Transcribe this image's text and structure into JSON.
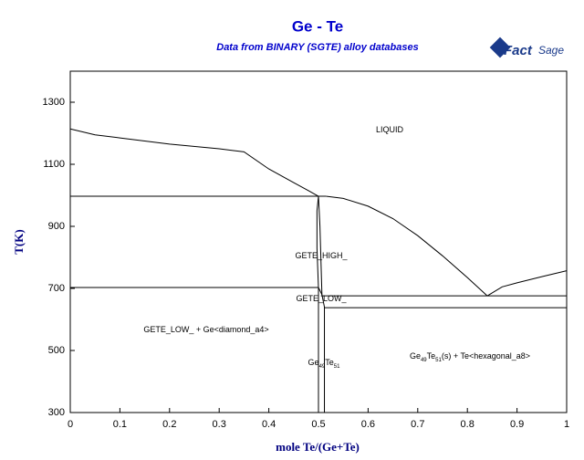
{
  "chart_data": {
    "type": "line",
    "title": "Ge - Te",
    "subtitle": "Data from BINARY (SGTE) alloy databases",
    "logo": [
      "Fact",
      "Sage"
    ],
    "x_label": "mole Te/(Ge+Te)",
    "y_label": "T(K)",
    "xlim": [
      0,
      1
    ],
    "ylim": [
      300,
      1400
    ],
    "xticks": [
      0,
      0.1,
      0.2,
      0.3,
      0.4,
      0.5,
      0.6,
      0.7,
      0.8,
      0.9,
      1
    ],
    "yticks": [
      300,
      500,
      700,
      900,
      1100,
      1300
    ],
    "series": [
      {
        "color": "#000000",
        "x": [
          0,
          0.05,
          0.1,
          0.2,
          0.3,
          0.35,
          0.4,
          0.45,
          0.48,
          0.5
        ],
        "values": [
          1214,
          1195,
          1185,
          1165,
          1150,
          1140,
          1085,
          1041,
          1015,
          997
        ]
      },
      {
        "color": "#000000",
        "x": [
          0,
          0.515
        ],
        "values": [
          997,
          997
        ]
      },
      {
        "color": "#000000",
        "x": [
          0.515,
          0.55,
          0.6,
          0.65,
          0.7,
          0.75,
          0.8,
          0.84
        ],
        "values": [
          997,
          990,
          965,
          925,
          870,
          805,
          735,
          676
        ]
      },
      {
        "color": "#000000",
        "x": [
          0.84,
          0.87,
          0.9,
          0.95,
          1
        ],
        "values": [
          676,
          705,
          718,
          738,
          757
        ]
      },
      {
        "color": "#000000",
        "x": [
          0.505,
          1
        ],
        "values": [
          676,
          676
        ]
      },
      {
        "color": "#000000",
        "x": [
          0.512,
          1
        ],
        "values": [
          638,
          638
        ]
      },
      {
        "color": "#000000",
        "x": [
          0,
          0.5
        ],
        "values": [
          703,
          703
        ]
      },
      {
        "color": "#000000",
        "x": [
          0.5,
          0.5,
          0.497,
          0.497,
          0.5
        ],
        "values": [
          300,
          700,
          830,
          950,
          997
        ]
      },
      {
        "color": "#000000",
        "x": [
          0.512,
          0.512,
          0.507,
          0.503,
          0.5
        ],
        "values": [
          300,
          640,
          680,
          900,
          997
        ]
      },
      {
        "color": "#000000",
        "x": [
          0.5,
          0.507
        ],
        "values": [
          703,
          680
        ]
      }
    ],
    "annotations": [
      {
        "parts": [
          "LIQUID"
        ]
      },
      {
        "parts": [
          "GETE_HIGH_"
        ]
      },
      {
        "parts": [
          "GETE_LOW_"
        ]
      },
      {
        "parts": [
          "GETE_LOW_ + Ge<diamond_a4>"
        ]
      },
      {
        "parts": [
          "Ge",
          "49",
          "Te",
          "51"
        ]
      },
      {
        "parts": [
          "Ge",
          "49",
          "Te",
          "51",
          "(s) + Te<hexagonal_a8>"
        ]
      }
    ]
  }
}
